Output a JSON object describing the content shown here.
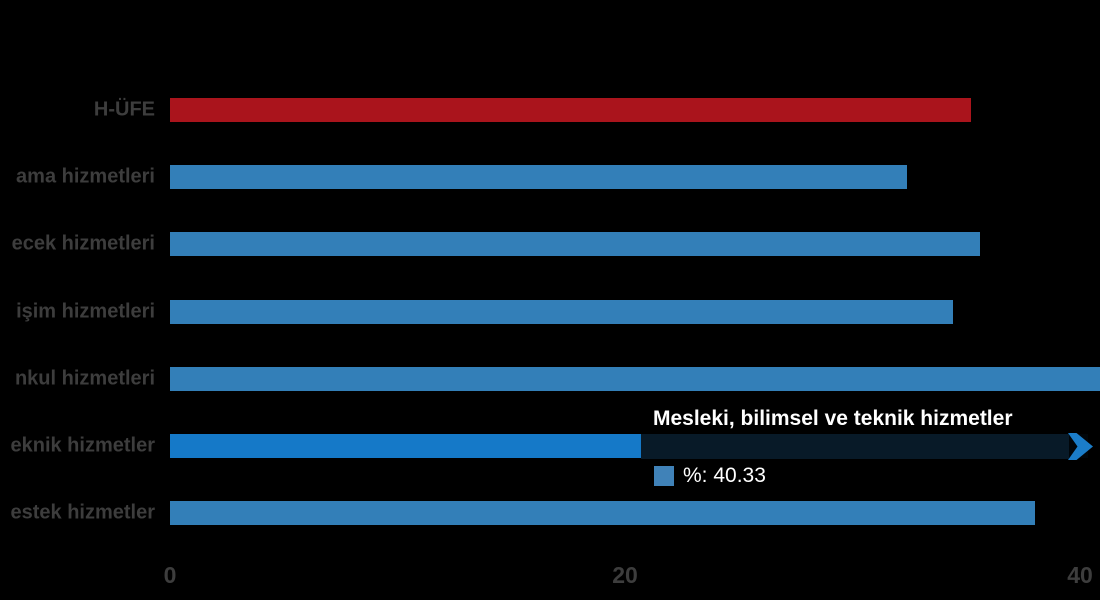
{
  "chart_data": {
    "type": "bar",
    "orientation": "horizontal",
    "title": "",
    "xlabel": "",
    "ylabel": "",
    "categories": [
      "H-ÜFE",
      "ama hizmetleri",
      "ecek hizmetleri",
      "işim hizmetleri",
      "nkul hizmetleri",
      "eknik hizmetler",
      "estek hizmetler"
    ],
    "values": [
      35.2,
      32.4,
      35.6,
      34.4,
      41.5,
      40.33,
      38.0
    ],
    "highlight_index": 5,
    "xticks": [
      0,
      20,
      40
    ],
    "xtick_labels": [
      "0",
      "20",
      "40"
    ],
    "xlim": [
      0,
      40.9
    ],
    "grid": false,
    "legend_position": "none",
    "note_clipped": "bar 4 (nkul hizmetleri) extends past right edge of frame; value estimated"
  },
  "tooltip": {
    "title": "Mesleki, bilimsel ve teknik hizmetler",
    "value_text": "%: 40.33"
  },
  "colors": {
    "background": "#000000",
    "first_bar": "#aa141c",
    "bar": "#337fb8",
    "hover_bar": "#1579c8",
    "label": "#3d3d3d",
    "tooltip_text": "#ffffff",
    "dimmed_bar_strip": "#081a28",
    "swatch": "#4082b8",
    "chevron": "#1b7dc9"
  }
}
